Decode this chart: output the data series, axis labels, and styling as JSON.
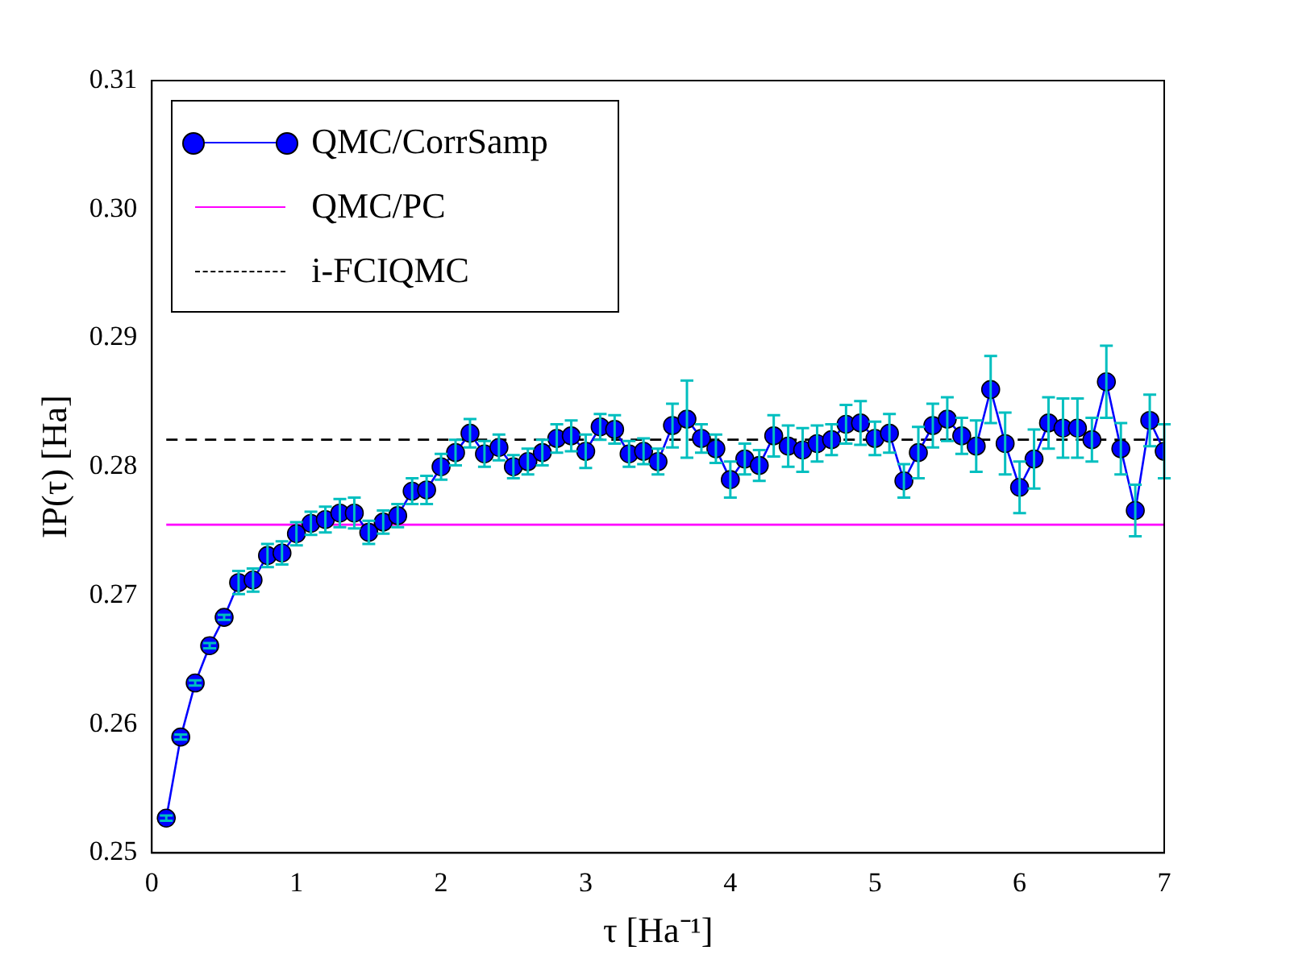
{
  "chart_data": {
    "type": "line",
    "xlabel": "τ [Ha⁻¹]",
    "ylabel": "IP(τ) [Ha]",
    "xlim": [
      0,
      7
    ],
    "ylim": [
      0.25,
      0.31
    ],
    "xticks": [
      0,
      1,
      2,
      3,
      4,
      5,
      6,
      7
    ],
    "yticks": [
      0.25,
      0.26,
      0.27,
      0.28,
      0.29,
      {
        "value": 0.3,
        "label": "0.30"
      },
      0.31
    ],
    "grid": false,
    "legend": "top left",
    "marker": "circle",
    "series": [
      {
        "name": "QMC/CorrSamp",
        "color": "#0000ff",
        "x": [
          0.1,
          0.2,
          0.3,
          0.4,
          0.5,
          0.6,
          0.7,
          0.8,
          0.9,
          1.0,
          1.1,
          1.2,
          1.3,
          1.4,
          1.5,
          1.6,
          1.7,
          1.8,
          1.9,
          2.0,
          2.1,
          2.2,
          2.3,
          2.4,
          2.5,
          2.6,
          2.7,
          2.8,
          2.9,
          3.0,
          3.1,
          3.2,
          3.3,
          3.4,
          3.5,
          3.6,
          3.7,
          3.8,
          3.9,
          4.0,
          4.1,
          4.2,
          4.3,
          4.4,
          4.5,
          4.6,
          4.7,
          4.8,
          4.9,
          5.0,
          5.1,
          5.2,
          5.3,
          5.4,
          5.5,
          5.6,
          5.7,
          5.8,
          5.9,
          6.0,
          6.1,
          6.2,
          6.3,
          6.4,
          6.5,
          6.6,
          6.7,
          6.8,
          6.9,
          7.0
        ],
        "values": [
          0.2527,
          0.259,
          0.2632,
          0.2661,
          0.2683,
          0.271,
          0.2712,
          0.2731,
          0.2733,
          0.2748,
          0.2756,
          0.2759,
          0.2764,
          0.2764,
          0.2749,
          0.2757,
          0.2762,
          0.2781,
          0.2782,
          0.28,
          0.2811,
          0.2826,
          0.281,
          0.2815,
          0.28,
          0.2804,
          0.2811,
          0.2822,
          0.2824,
          0.2812,
          0.2831,
          0.2829,
          0.281,
          0.2812,
          0.2804,
          0.2832,
          0.2837,
          0.2822,
          0.2814,
          0.279,
          0.2806,
          0.2801,
          0.2824,
          0.2816,
          0.2813,
          0.2818,
          0.2821,
          0.2833,
          0.2834,
          0.2822,
          0.2826,
          0.2789,
          0.2811,
          0.2832,
          0.2837,
          0.2824,
          0.2816,
          0.286,
          0.2818,
          0.2784,
          0.2806,
          0.2834,
          0.283,
          0.283,
          0.2821,
          0.2866,
          0.2814,
          0.2766,
          0.2836,
          0.2812
        ],
        "errors": [
          0.0002,
          0.0002,
          0.0002,
          0.0002,
          0.0002,
          0.0009,
          0.0009,
          0.0009,
          0.0009,
          0.0009,
          0.0009,
          0.001,
          0.0011,
          0.0012,
          0.0009,
          0.0009,
          0.0009,
          0.001,
          0.0011,
          0.001,
          0.001,
          0.0011,
          0.001,
          0.001,
          0.0009,
          0.001,
          0.001,
          0.0011,
          0.0012,
          0.0013,
          0.001,
          0.0011,
          0.001,
          0.001,
          0.001,
          0.0017,
          0.003,
          0.0011,
          0.0011,
          0.0014,
          0.0012,
          0.0012,
          0.0016,
          0.0016,
          0.0017,
          0.0014,
          0.0012,
          0.0015,
          0.0017,
          0.0013,
          0.0015,
          0.0013,
          0.002,
          0.0017,
          0.0017,
          0.0014,
          0.002,
          0.0026,
          0.0024,
          0.002,
          0.0023,
          0.002,
          0.0023,
          0.0023,
          0.0017,
          0.0028,
          0.002,
          0.002,
          0.002,
          0.0021
        ]
      },
      {
        "name": "QMC/PC",
        "color": "#ff00ff",
        "marker": "none",
        "x": [
          0.1,
          7.0
        ],
        "values": [
          0.2755,
          0.2755
        ]
      },
      {
        "name": "i-FCIQMC",
        "color": "#000000",
        "marker": "none",
        "line_style": "dashed",
        "x": [
          0.1,
          7.0
        ],
        "values": [
          0.2821,
          0.2821
        ]
      }
    ]
  }
}
